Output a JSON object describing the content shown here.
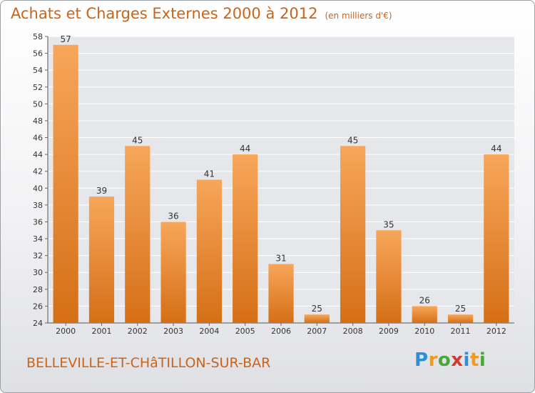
{
  "title": "Achats et Charges Externes 2000 à 2012",
  "subtitle": "(en milliers d'€)",
  "town": "BELLEVILLE-ET-CHâTILLON-SUR-BAR",
  "logo": {
    "letters": [
      "P",
      "r",
      "o",
      "x",
      "i",
      "t",
      "i"
    ],
    "colors": [
      "#2e8fd6",
      "#f39a1c",
      "#4aa83a",
      "#d63a2c",
      "#2e8fd6",
      "#f39a1c",
      "#4aa83a"
    ]
  },
  "colors": {
    "bar_top": "#f7a65a",
    "bar_bottom": "#d56f16",
    "accent": "#c9641a",
    "grid": "#ffffff"
  },
  "chart_data": {
    "type": "bar",
    "categories": [
      "2000",
      "2001",
      "2002",
      "2003",
      "2004",
      "2005",
      "2006",
      "2007",
      "2008",
      "2009",
      "2010",
      "2011",
      "2012"
    ],
    "values": [
      57,
      39,
      45,
      36,
      41,
      44,
      31,
      25,
      45,
      35,
      26,
      25,
      44
    ],
    "ylim": [
      24,
      58
    ],
    "yticks": [
      24,
      26,
      28,
      30,
      32,
      34,
      36,
      38,
      40,
      42,
      44,
      46,
      48,
      50,
      52,
      54,
      56,
      58
    ],
    "grid": true,
    "data_labels": true
  }
}
